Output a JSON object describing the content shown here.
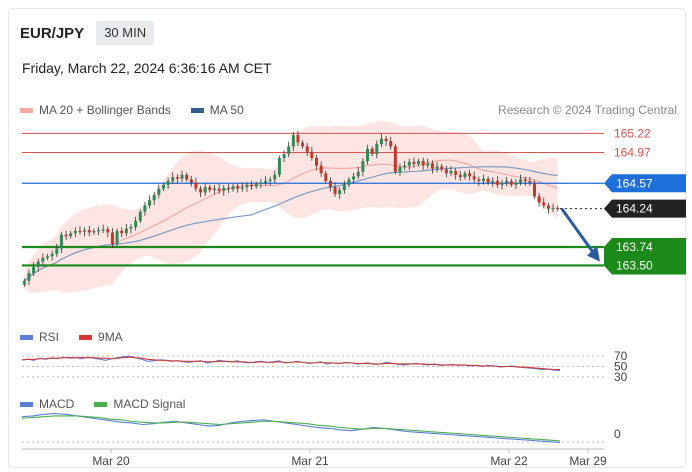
{
  "header": {
    "symbol": "EUR/JPY",
    "interval": "30 MIN",
    "datetime": "Friday, March 22, 2024 6:36:16 AM CET"
  },
  "main_legend": [
    {
      "label": "MA 20 + Bollinger Bands",
      "color": "#f4a9a4"
    },
    {
      "label": "MA 50",
      "color": "#2f5f8a"
    }
  ],
  "copyright": "Research © 2024 Trading Central",
  "rsi_legend": [
    {
      "label": "RSI",
      "color": "#5b7fd8"
    },
    {
      "label": "9MA",
      "color": "#d23a3a"
    }
  ],
  "macd_legend": [
    {
      "label": "MACD",
      "color": "#5b7fd8"
    },
    {
      "label": "MACD Signal",
      "color": "#4caf50"
    }
  ],
  "chart_data": [
    {
      "type": "candlestick",
      "x_ticks": [
        "Mar 20",
        "Mar 21",
        "Mar 22",
        "Mar 29"
      ],
      "ylim": [
        163.05,
        165.42
      ],
      "levels": [
        {
          "value": 165.22,
          "label": "165.22",
          "kind": "resistance",
          "color": "#d9534f"
        },
        {
          "value": 164.97,
          "label": "164.97",
          "kind": "resistance",
          "color": "#d9534f"
        },
        {
          "value": 164.57,
          "label": "164.57",
          "kind": "pivot",
          "color": "#1e6fd9"
        },
        {
          "value": 164.24,
          "label": "164.24",
          "kind": "last",
          "color": "#222222"
        },
        {
          "value": 163.74,
          "label": "163.74",
          "kind": "support",
          "color": "#1b8a1b"
        },
        {
          "value": 163.5,
          "label": "163.50",
          "kind": "support",
          "color": "#1b8a1b"
        }
      ],
      "close": [
        163.3,
        163.4,
        163.48,
        163.55,
        163.6,
        163.62,
        163.65,
        163.72,
        163.9,
        163.88,
        163.92,
        163.95,
        163.94,
        163.96,
        163.93,
        163.95,
        163.96,
        163.97,
        163.93,
        163.78,
        163.95,
        163.92,
        163.98,
        164.0,
        164.08,
        164.2,
        164.28,
        164.35,
        164.42,
        164.5,
        164.55,
        164.6,
        164.65,
        164.63,
        164.68,
        164.62,
        164.58,
        164.5,
        164.45,
        164.52,
        164.48,
        164.5,
        164.47,
        164.51,
        164.49,
        164.53,
        164.5,
        164.52,
        164.55,
        164.53,
        164.56,
        164.58,
        164.6,
        164.62,
        164.68,
        164.9,
        164.95,
        165.05,
        165.2,
        165.1,
        165.05,
        164.98,
        164.9,
        164.8,
        164.7,
        164.6,
        164.52,
        164.43,
        164.48,
        164.55,
        164.62,
        164.66,
        164.72,
        164.86,
        165.02,
        164.95,
        165.08,
        165.15,
        165.12,
        165.05,
        164.72,
        164.78,
        164.8,
        164.85,
        164.82,
        164.86,
        164.8,
        164.83,
        164.76,
        164.79,
        164.75,
        164.7,
        164.73,
        164.68,
        164.65,
        164.7,
        164.66,
        164.62,
        164.6,
        164.63,
        164.58,
        164.6,
        164.55,
        164.58,
        164.6,
        164.55,
        164.58,
        164.62,
        164.6,
        164.58,
        164.4,
        164.32,
        164.28,
        164.24,
        164.25,
        164.24
      ],
      "moving_averages": [
        "MA 20",
        "MA 50"
      ],
      "bands": "Bollinger Bands"
    },
    {
      "type": "line",
      "name": "RSI",
      "ticks": [
        70,
        50,
        30
      ],
      "ylim": [
        20,
        80
      ],
      "series": [
        {
          "name": "RSI",
          "values": [
            63,
            64,
            62,
            66,
            64,
            67,
            65,
            68,
            66,
            67,
            65,
            68,
            66,
            64,
            62,
            65,
            67,
            69,
            70,
            67,
            64,
            60,
            61,
            63,
            62,
            60,
            61,
            59,
            58,
            60,
            61,
            57,
            59,
            62,
            60,
            59,
            61,
            58,
            57,
            59,
            60,
            58,
            59,
            61,
            57,
            58,
            60,
            58,
            56,
            57,
            59,
            55,
            57,
            56,
            58,
            57,
            55,
            56,
            57,
            54,
            55,
            58,
            56,
            54,
            53,
            55,
            56,
            54,
            53,
            55,
            52,
            53,
            54,
            52,
            53,
            51,
            52,
            50,
            52,
            51,
            49,
            50,
            51,
            49,
            48,
            47,
            46,
            44,
            45,
            43,
            42
          ]
        },
        {
          "name": "9MA",
          "values": [
            63,
            64,
            64,
            65,
            65,
            66,
            66,
            67,
            67,
            67,
            67,
            67,
            67,
            66,
            66,
            65,
            66,
            67,
            68,
            67,
            66,
            64,
            63,
            62,
            62,
            61,
            61,
            60,
            60,
            60,
            60,
            59,
            59,
            60,
            60,
            59,
            59,
            59,
            58,
            58,
            59,
            58,
            58,
            59,
            58,
            58,
            59,
            58,
            57,
            57,
            58,
            57,
            57,
            56,
            57,
            57,
            56,
            56,
            56,
            55,
            55,
            56,
            56,
            55,
            55,
            55,
            55,
            55,
            54,
            54,
            53,
            53,
            53,
            53,
            53,
            52,
            52,
            51,
            51,
            51,
            50,
            50,
            50,
            49,
            49,
            48,
            47,
            46,
            45,
            44,
            44
          ]
        }
      ]
    },
    {
      "type": "line",
      "name": "MACD",
      "ticks": [
        0
      ],
      "series": [
        {
          "name": "MACD",
          "values": [
            0.3,
            0.31,
            0.33,
            0.34,
            0.33,
            0.31,
            0.29,
            0.27,
            0.25,
            0.23,
            0.22,
            0.2,
            0.21,
            0.23,
            0.24,
            0.22,
            0.2,
            0.18,
            0.19,
            0.22,
            0.24,
            0.25,
            0.26,
            0.24,
            0.22,
            0.2,
            0.18,
            0.16,
            0.15,
            0.13,
            0.12,
            0.14,
            0.16,
            0.15,
            0.13,
            0.11,
            0.1,
            0.09,
            0.08,
            0.07,
            0.06,
            0.05,
            0.04,
            0.03,
            0.02,
            0.01,
            0.0,
            -0.01,
            -0.02,
            -0.03
          ]
        },
        {
          "name": "MACD Signal",
          "values": [
            0.28,
            0.29,
            0.3,
            0.31,
            0.31,
            0.31,
            0.3,
            0.29,
            0.27,
            0.26,
            0.24,
            0.23,
            0.22,
            0.22,
            0.23,
            0.23,
            0.22,
            0.21,
            0.2,
            0.21,
            0.22,
            0.23,
            0.24,
            0.24,
            0.23,
            0.22,
            0.21,
            0.19,
            0.18,
            0.16,
            0.15,
            0.14,
            0.15,
            0.15,
            0.14,
            0.13,
            0.12,
            0.11,
            0.1,
            0.09,
            0.08,
            0.07,
            0.06,
            0.05,
            0.04,
            0.03,
            0.02,
            0.01,
            0.0,
            -0.01
          ]
        }
      ]
    }
  ]
}
